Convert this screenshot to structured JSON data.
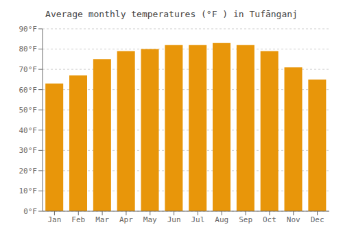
{
  "chart_data": {
    "type": "bar",
    "title": "Average monthly temperatures (°F ) in Tufānganj",
    "categories": [
      "Jan",
      "Feb",
      "Mar",
      "Apr",
      "May",
      "Jun",
      "Jul",
      "Aug",
      "Sep",
      "Oct",
      "Nov",
      "Dec"
    ],
    "values": [
      63,
      67,
      75,
      79,
      80,
      82,
      82,
      83,
      82,
      79,
      71,
      65
    ],
    "color": "#E8960A",
    "ylim": [
      0,
      90
    ],
    "yticks": [
      {
        "value": 0,
        "label": "0°F"
      },
      {
        "value": 10,
        "label": "10°F"
      },
      {
        "value": 20,
        "label": "20°F"
      },
      {
        "value": 30,
        "label": "30°F"
      },
      {
        "value": 40,
        "label": "40°F"
      },
      {
        "value": 50,
        "label": "50°F"
      },
      {
        "value": 60,
        "label": "60°F"
      },
      {
        "value": 70,
        "label": "70°F"
      },
      {
        "value": 80,
        "label": "80°F"
      },
      {
        "value": 90,
        "label": "90°F"
      }
    ],
    "grid": true
  }
}
